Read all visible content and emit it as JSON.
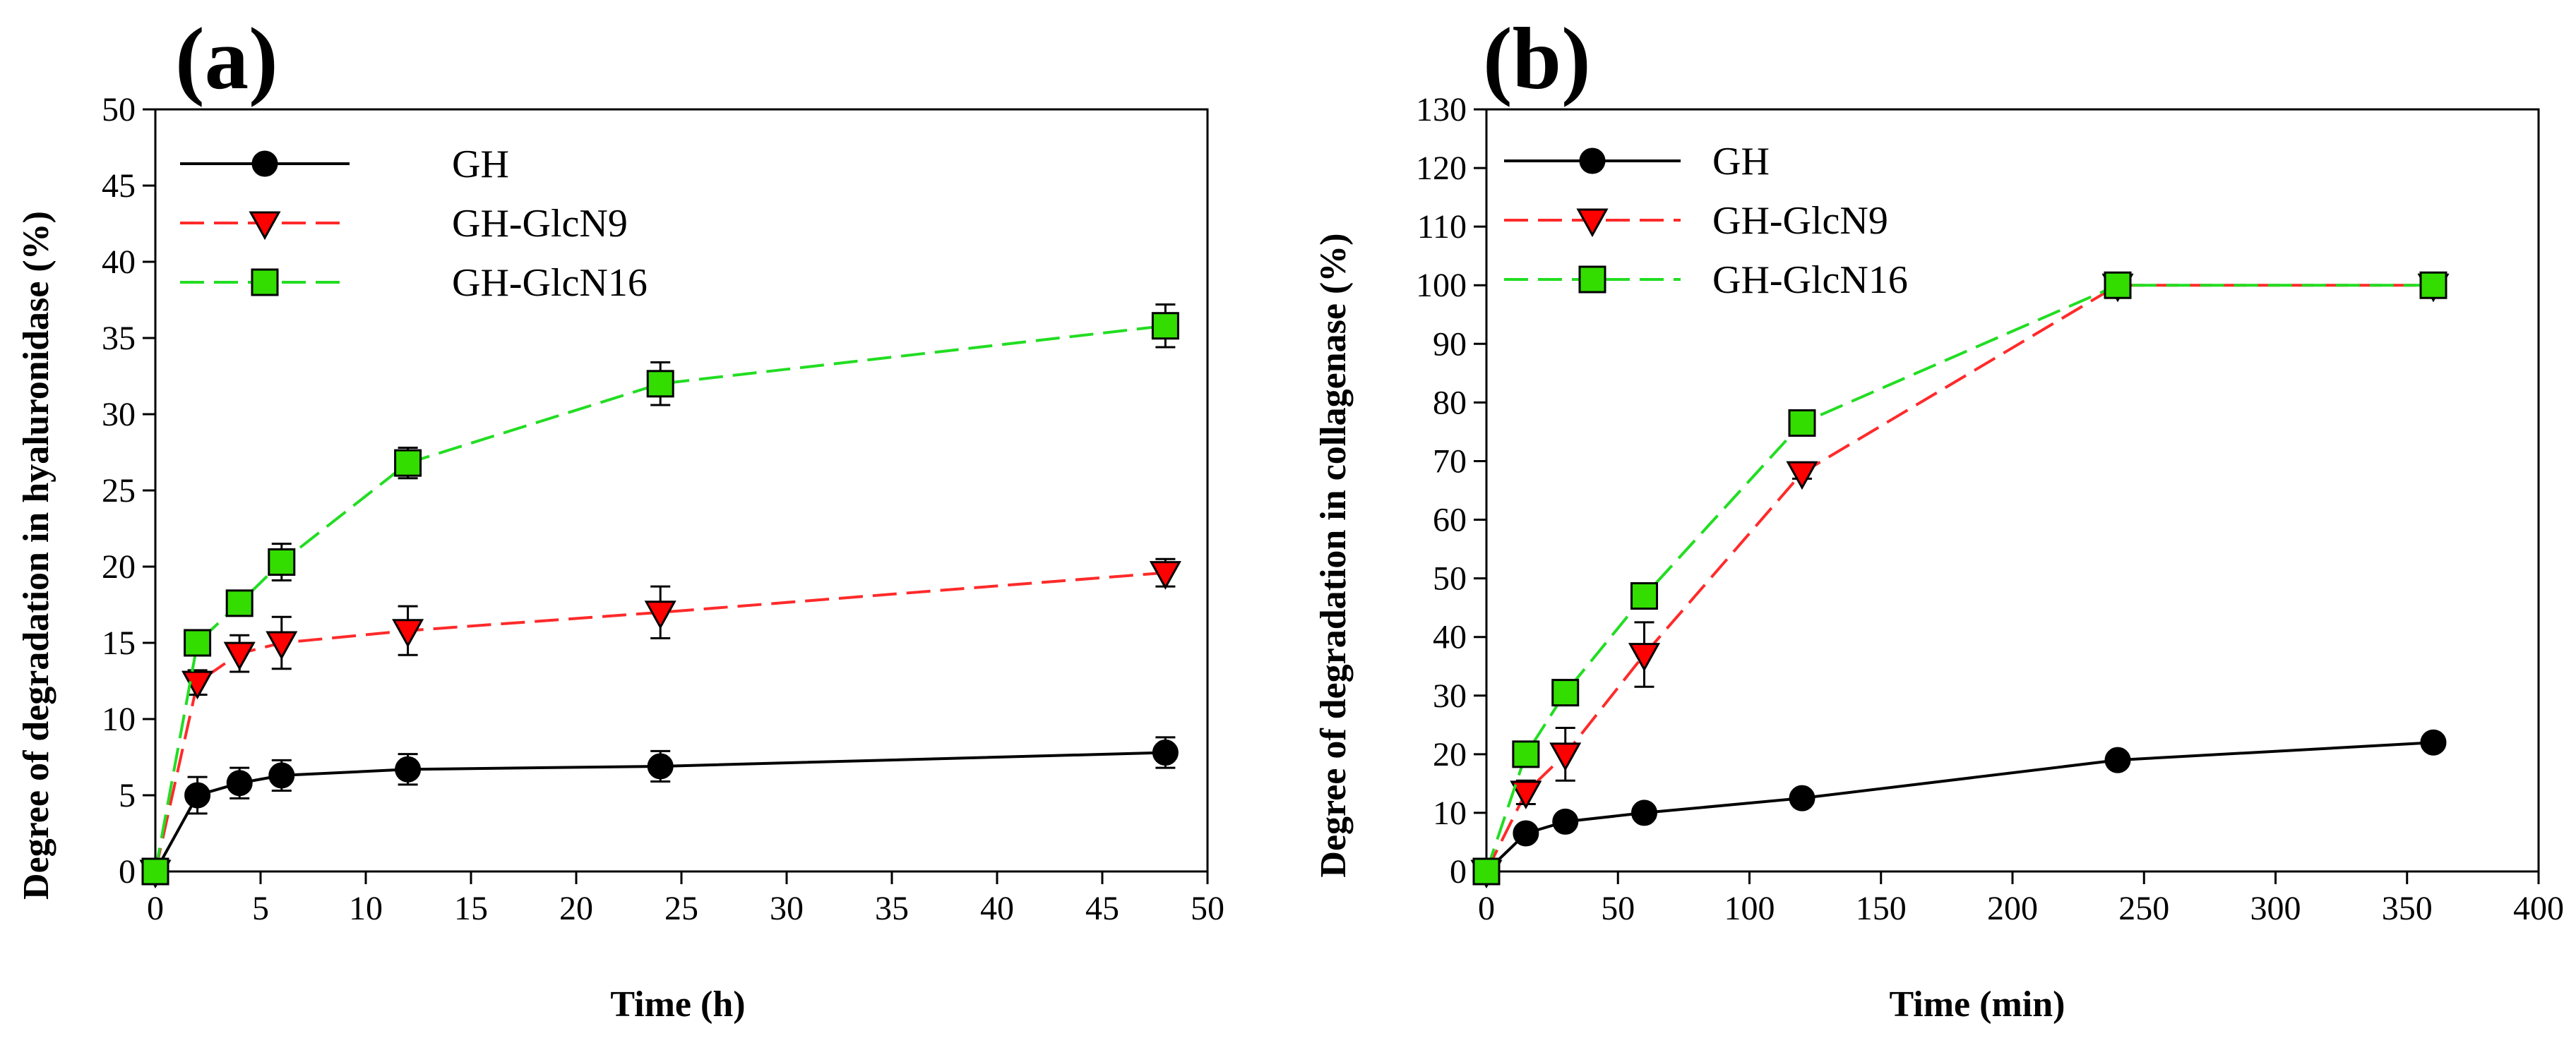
{
  "chart_data": [
    {
      "type": "line",
      "panel_label": "(a)",
      "xlabel": "Time (h)",
      "ylabel": "Degree of degradation in hyaluronidase (%)",
      "xlim": [
        0,
        50
      ],
      "ylim": [
        0,
        50
      ],
      "xticks": [
        0,
        5,
        10,
        15,
        20,
        25,
        30,
        35,
        40,
        45,
        50
      ],
      "yticks": [
        0,
        5,
        10,
        15,
        20,
        25,
        30,
        35,
        40,
        45,
        50
      ],
      "legend_position": "top-left",
      "series": [
        {
          "name": "GH",
          "marker": "circle",
          "color": "#000000",
          "fill": "#000000",
          "dashed": false,
          "x": [
            0,
            2,
            4,
            6,
            12,
            24,
            48
          ],
          "y": [
            0,
            5,
            5.8,
            6.3,
            6.7,
            6.9,
            7.8
          ],
          "err": [
            0,
            1.2,
            1.0,
            1.0,
            1.0,
            1.0,
            1.0
          ]
        },
        {
          "name": "GH-GlcN9",
          "marker": "triangle-down",
          "color": "#ff2a2a",
          "fill": "#ff0000",
          "dashed": true,
          "x": [
            0,
            2,
            4,
            6,
            12,
            24,
            48
          ],
          "y": [
            0,
            12.4,
            14.3,
            15,
            15.8,
            17,
            19.6
          ],
          "err": [
            0,
            0.8,
            1.2,
            1.7,
            1.6,
            1.7,
            0.9
          ]
        },
        {
          "name": "GH-GlcN16",
          "marker": "square",
          "color": "#22dd22",
          "fill": "#33dd00",
          "dashed": true,
          "x": [
            0,
            2,
            4,
            6,
            12,
            24,
            48
          ],
          "y": [
            0,
            15,
            17.6,
            20.3,
            26.8,
            32,
            35.8
          ],
          "err": [
            0,
            0.4,
            0.5,
            1.2,
            1.0,
            1.4,
            1.4
          ]
        }
      ]
    },
    {
      "type": "line",
      "panel_label": "(b)",
      "xlabel": "Time (min)",
      "ylabel": "Degree of degradation in collagenase (%)",
      "xlim": [
        0,
        400
      ],
      "ylim": [
        0,
        130
      ],
      "xticks": [
        0,
        50,
        100,
        150,
        200,
        250,
        300,
        350,
        400
      ],
      "yticks": [
        0,
        10,
        20,
        30,
        40,
        50,
        60,
        70,
        80,
        90,
        100,
        110,
        120,
        130
      ],
      "legend_position": "top-left",
      "series": [
        {
          "name": "GH",
          "marker": "circle",
          "color": "#000000",
          "fill": "#000000",
          "dashed": false,
          "x": [
            0,
            15,
            30,
            60,
            120,
            240,
            360
          ],
          "y": [
            0,
            6.5,
            8.5,
            10,
            12.5,
            19,
            22
          ],
          "err": [
            0,
            0.5,
            0.5,
            0.5,
            0.5,
            0.5,
            0.5
          ]
        },
        {
          "name": "GH-GlcN9",
          "marker": "triangle-down",
          "color": "#ff2a2a",
          "fill": "#ff0000",
          "dashed": true,
          "x": [
            0,
            15,
            30,
            60,
            120,
            240,
            360
          ],
          "y": [
            0,
            13.5,
            20,
            37,
            68,
            100,
            100
          ],
          "err": [
            0,
            2,
            4.5,
            5.5,
            1,
            0.5,
            0.5
          ]
        },
        {
          "name": "GH-GlcN16",
          "marker": "square",
          "color": "#22dd22",
          "fill": "#33dd00",
          "dashed": true,
          "x": [
            0,
            15,
            30,
            60,
            120,
            240,
            360
          ],
          "y": [
            0,
            20,
            30.5,
            47,
            76.5,
            100,
            100
          ],
          "err": [
            0,
            0.5,
            0.5,
            1.5,
            0.5,
            0.5,
            0.5
          ]
        }
      ]
    }
  ]
}
